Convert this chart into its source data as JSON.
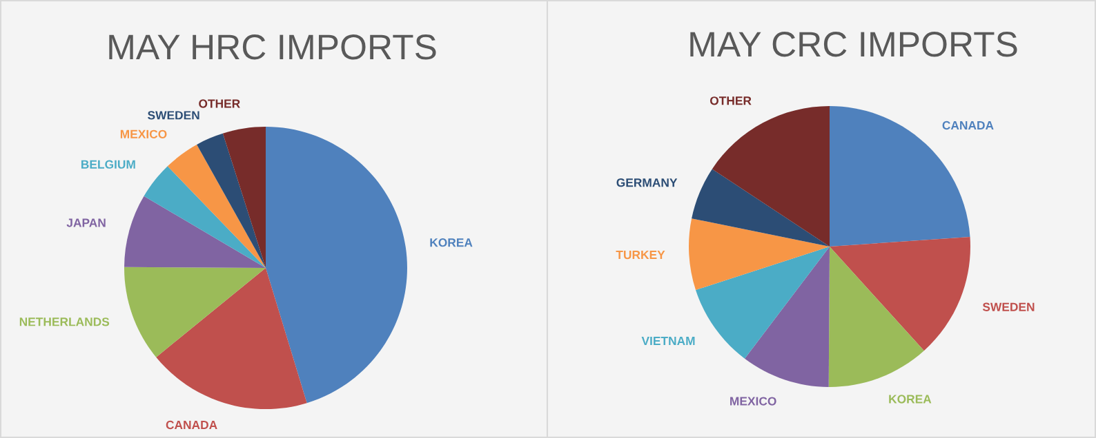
{
  "chart_data": [
    {
      "type": "pie",
      "title": "MAY HRC IMPORTS",
      "categories": [
        "KOREA",
        "CANADA",
        "NETHERLANDS",
        "JAPAN",
        "BELGIUM",
        "MEXICO",
        "SWEDEN",
        "OTHER"
      ],
      "values": [
        45.3,
        18.8,
        11.0,
        8.4,
        4.3,
        4.1,
        3.2,
        4.9
      ],
      "colors": [
        "#4f81bd",
        "#c0504d",
        "#9bbb59",
        "#8064a2",
        "#4bacc6",
        "#f79646",
        "#2c4d75",
        "#772c2a"
      ]
    },
    {
      "type": "pie",
      "title": "MAY CRC IMPORTS",
      "categories": [
        "CANADA",
        "SWEDEN",
        "KOREA",
        "MEXICO",
        "VIETNAM",
        "TURKEY",
        "GERMANY",
        "OTHER"
      ],
      "values": [
        23.9,
        14.4,
        11.8,
        10.2,
        9.7,
        8.2,
        6.1,
        15.7
      ],
      "colors": [
        "#4f81bd",
        "#c0504d",
        "#9bbb59",
        "#8064a2",
        "#4bacc6",
        "#f79646",
        "#2c4d75",
        "#772c2a"
      ]
    }
  ]
}
